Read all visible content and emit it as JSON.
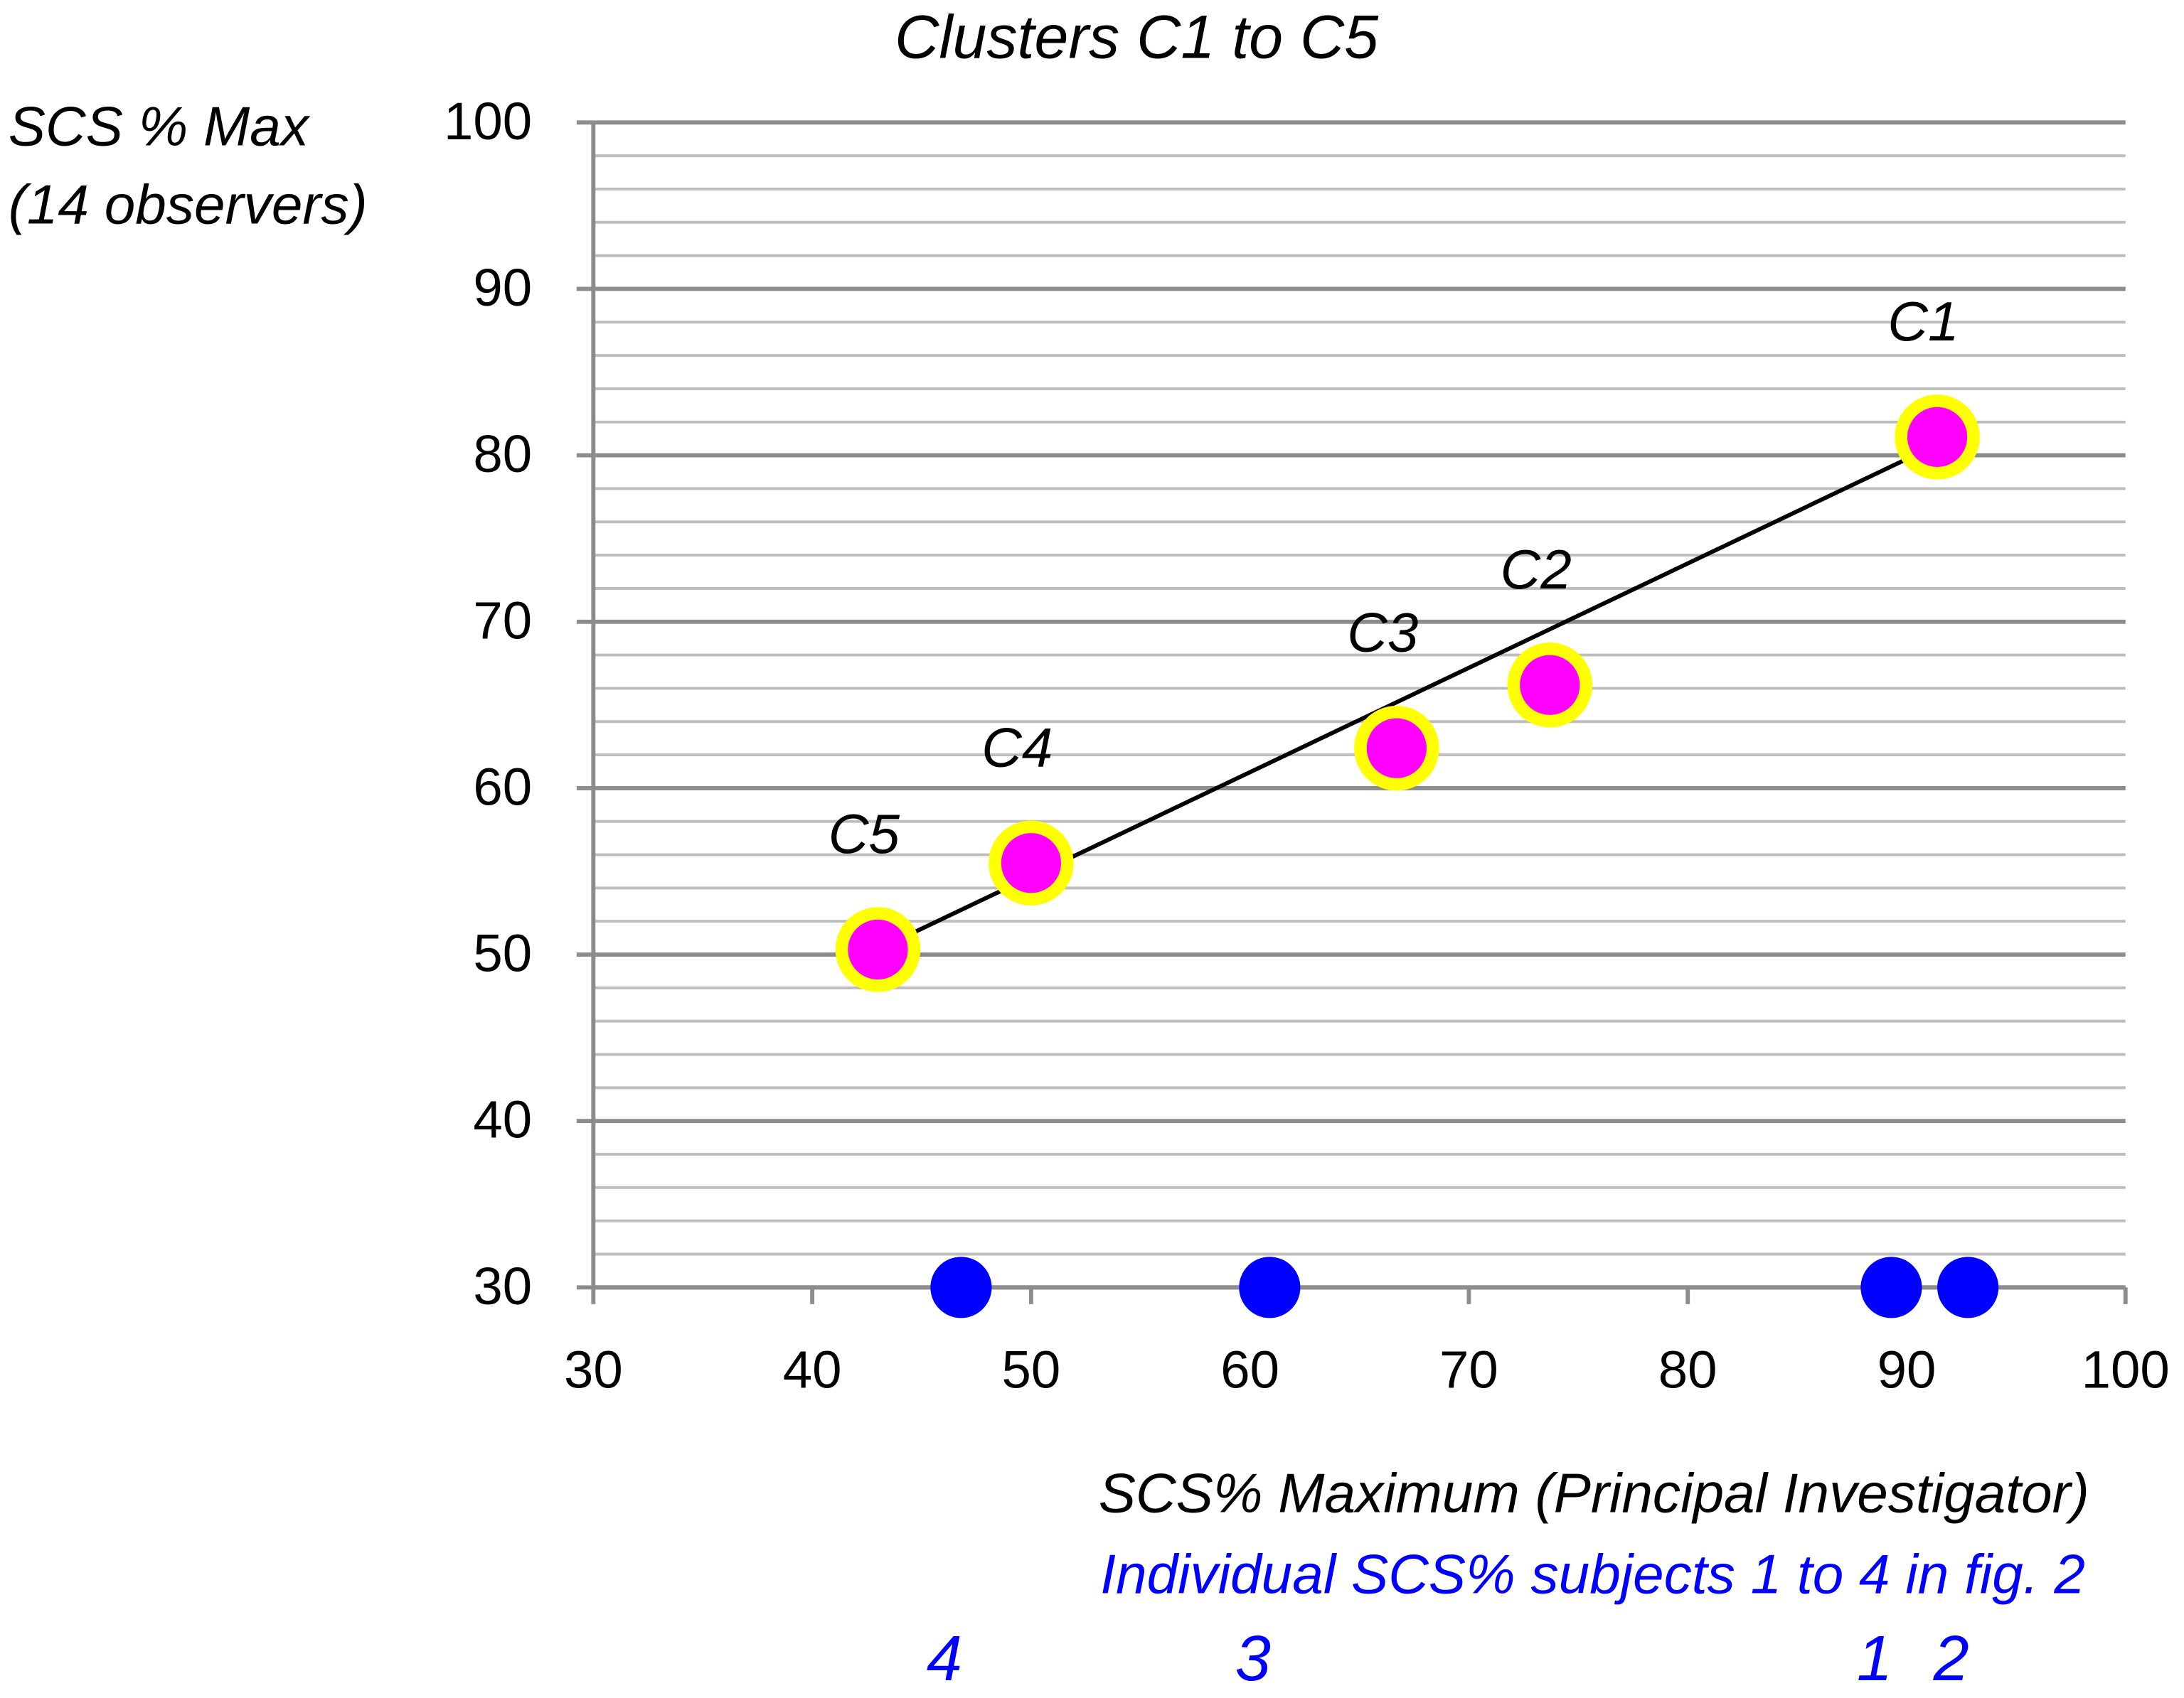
{
  "chart_data": {
    "type": "scatter",
    "title": "Clusters C1 to C5",
    "y_label": [
      "SCS % Max",
      "(14 observers)"
    ],
    "x_label": "SCS% Maximum (Principal Investigator)",
    "subtitle_note": "Individual SCS% subjects 1 to 4 in fig. 2",
    "xlim": [
      30,
      100
    ],
    "xticks": [
      30,
      40,
      50,
      60,
      70,
      80,
      90,
      100
    ],
    "ylim": [
      30,
      100
    ],
    "yticks": [
      30,
      40,
      50,
      60,
      70,
      80,
      90,
      100
    ],
    "yminorticks": [
      32,
      34,
      36,
      38,
      42,
      44,
      46,
      48,
      52,
      54,
      56,
      58,
      62,
      64,
      66,
      68,
      72,
      74,
      76,
      78,
      82,
      84,
      86,
      88,
      92,
      94,
      96,
      98
    ],
    "grid": true,
    "clusters": {
      "labels": [
        "C1",
        "C2",
        "C3",
        "C4",
        "C5"
      ],
      "x": [
        91.4,
        73.7,
        66.7,
        50.0,
        43.0
      ],
      "y": [
        81.1,
        66.2,
        62.4,
        55.5,
        50.3
      ],
      "color": "#ff00ff",
      "edge_color": "#ffff00"
    },
    "trendline": {
      "x": [
        43.0,
        91.0
      ],
      "y": [
        50.3,
        80.4
      ],
      "color": "#000000"
    },
    "subjects": {
      "labels": [
        "1",
        "2",
        "3",
        "4"
      ],
      "x": [
        89.3,
        92.8,
        60.9,
        46.8
      ],
      "y": [
        30,
        30,
        30,
        30
      ],
      "color": "#0000ff"
    }
  }
}
